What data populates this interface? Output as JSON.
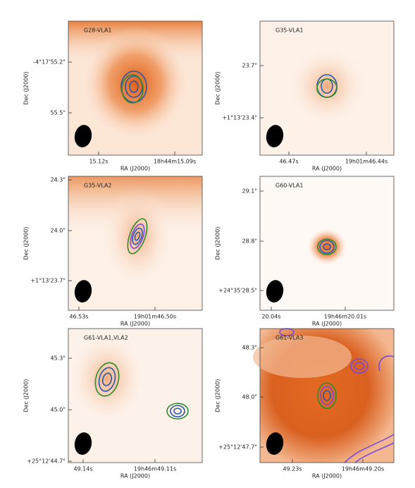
{
  "panels": [
    {
      "label": "G28-VLA1",
      "y_ticks": [
        "-4°17'55.2\"",
        "55.5\""
      ],
      "x_ticks": [
        "15.12s",
        "18h44m15.09s"
      ],
      "x_axis_label": "RA (J2000)",
      "y_axis_label": "Dec (J2000)"
    },
    {
      "label": "G35-VLA1",
      "y_ticks": [
        "23.7\"",
        "+1°13'23.4\""
      ],
      "x_ticks": [
        "46.47s",
        "19h01m46.44s"
      ],
      "x_axis_label": "RA (J2000)",
      "y_axis_label": "Dec (J2000)"
    },
    {
      "label": "G35-VLA2",
      "y_ticks": [
        "24.3\"",
        "24.0\"",
        "+1°13'23.7\""
      ],
      "x_ticks": [
        "46.53s",
        "19h01m46.50s"
      ],
      "x_axis_label": "RA (J2000)",
      "y_axis_label": "Dec (J2000)"
    },
    {
      "label": "G60-VLA1",
      "y_ticks": [
        "29.1\"",
        "28.8\"",
        "+24°35'28.5\""
      ],
      "x_ticks": [
        "20.04s",
        "19h46m20.01s"
      ],
      "x_axis_label": "RA (J2000)",
      "y_axis_label": "Dec (J2000)"
    },
    {
      "label": "G61-VLA1,VLA2",
      "y_ticks": [
        "45.3\"",
        "45.0\"",
        "+25°12'44.7\""
      ],
      "x_ticks": [
        "49.14s",
        "19h46m49.11s"
      ],
      "x_axis_label": "RA (J2000)",
      "y_axis_label": "Dec (J2000)"
    },
    {
      "label": "G61-VLA3",
      "y_ticks": [
        "48.3\"",
        "48.0\"",
        "+25°12'47.7\""
      ],
      "x_ticks": [
        "49.23s",
        "19h46m49.20s"
      ],
      "x_axis_label": "RA (J2000)",
      "y_axis_label": "Dec (J2000)"
    }
  ]
}
